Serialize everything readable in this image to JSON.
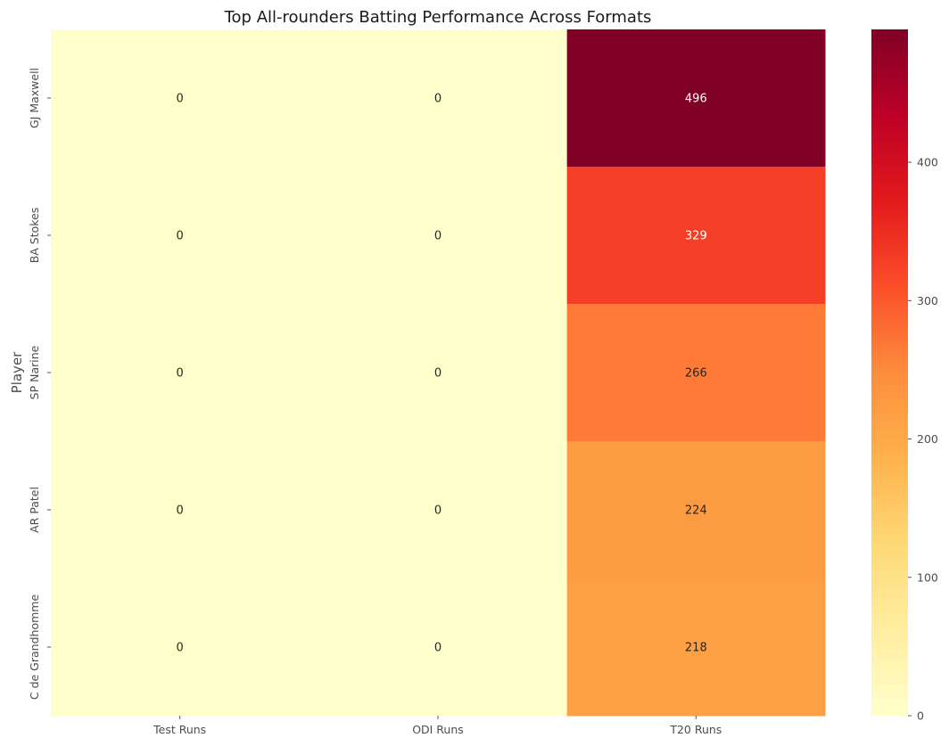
{
  "chart_data": {
    "type": "heatmap",
    "title": "Top All-rounders Batting Performance Across Formats",
    "xlabel": "",
    "ylabel": "Player",
    "columns": [
      "Test Runs",
      "ODI Runs",
      "T20 Runs"
    ],
    "rows": [
      "GJ Maxwell",
      "BA Stokes",
      "SP Narine",
      "AR Patel",
      "C de Grandhomme"
    ],
    "values": [
      [
        0,
        0,
        496
      ],
      [
        0,
        0,
        329
      ],
      [
        0,
        0,
        266
      ],
      [
        0,
        0,
        224
      ],
      [
        0,
        0,
        218
      ]
    ],
    "colormap": "YlOrRd",
    "vmin": 0,
    "vmax": 496,
    "colorbar": {
      "ticks": [
        0,
        100,
        200,
        300,
        400
      ]
    },
    "grid": false
  }
}
